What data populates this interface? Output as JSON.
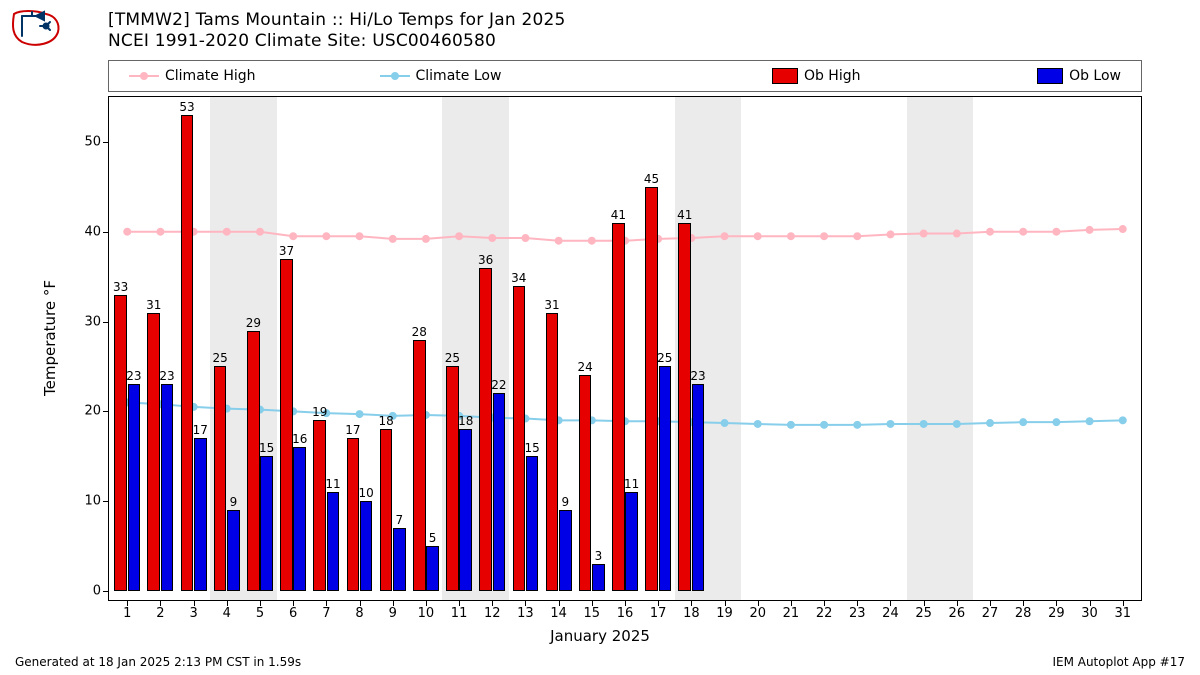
{
  "title": "[TMMW2] Tams Mountain :: Hi/Lo Temps for Jan 2025",
  "subtitle": "NCEI 1991-2020 Climate Site: USC00460580",
  "footer_left": "Generated at 18 Jan 2025 2:13 PM CST in 1.59s",
  "footer_right": "IEM Autoplot App #17",
  "ylabel": "Temperature °F",
  "xlabel": "January 2025",
  "legend": {
    "climate_high": "Climate High",
    "climate_low": "Climate Low",
    "ob_high": "Ob High",
    "ob_low": "Ob Low"
  },
  "colors": {
    "climate_high": "#ffb6c1",
    "climate_low": "#87ceeb",
    "ob_high": "#e60000",
    "ob_low": "#0000e6",
    "bar_border": "#000000",
    "weekend": "#ebebeb",
    "axis": "#000000",
    "text": "#000000",
    "background": "#ffffff"
  },
  "chart": {
    "ylim": [
      -1,
      55
    ],
    "ytick_step": 10,
    "yticks": [
      0,
      10,
      20,
      30,
      40,
      50
    ],
    "days": [
      1,
      2,
      3,
      4,
      5,
      6,
      7,
      8,
      9,
      10,
      11,
      12,
      13,
      14,
      15,
      16,
      17,
      18,
      19,
      20,
      21,
      22,
      23,
      24,
      25,
      26,
      27,
      28,
      29,
      30,
      31
    ],
    "x_pad": 0.55,
    "weekends": [
      [
        4,
        5
      ],
      [
        11,
        12
      ],
      [
        18,
        19
      ],
      [
        25,
        26
      ]
    ],
    "bar_width": 0.38,
    "bar_gap": 0.02,
    "marker_r": 4,
    "line_w": 2,
    "climate_high": [
      40,
      40,
      40,
      40,
      40,
      39.5,
      39.5,
      39.5,
      39.2,
      39.2,
      39.5,
      39.3,
      39.3,
      39,
      39,
      39,
      39.2,
      39.3,
      39.5,
      39.5,
      39.5,
      39.5,
      39.5,
      39.7,
      39.8,
      39.8,
      40,
      40,
      40,
      40.2,
      40.3
    ],
    "climate_low": [
      21,
      20.8,
      20.5,
      20.3,
      20.2,
      20,
      19.8,
      19.7,
      19.5,
      19.6,
      19.5,
      19.3,
      19.2,
      19,
      19,
      18.9,
      18.9,
      18.8,
      18.7,
      18.6,
      18.5,
      18.5,
      18.5,
      18.6,
      18.6,
      18.6,
      18.7,
      18.8,
      18.8,
      18.9,
      19
    ],
    "ob_high": [
      33,
      31,
      53,
      25,
      29,
      37,
      19,
      17,
      18,
      28,
      25,
      36,
      34,
      31,
      24,
      41,
      45,
      41
    ],
    "ob_low": [
      23,
      23,
      17,
      9,
      15,
      16,
      11,
      10,
      7,
      5,
      18,
      22,
      15,
      9,
      3,
      11,
      25,
      23
    ],
    "label_fontsize": 12,
    "tick_fontsize": 13
  }
}
